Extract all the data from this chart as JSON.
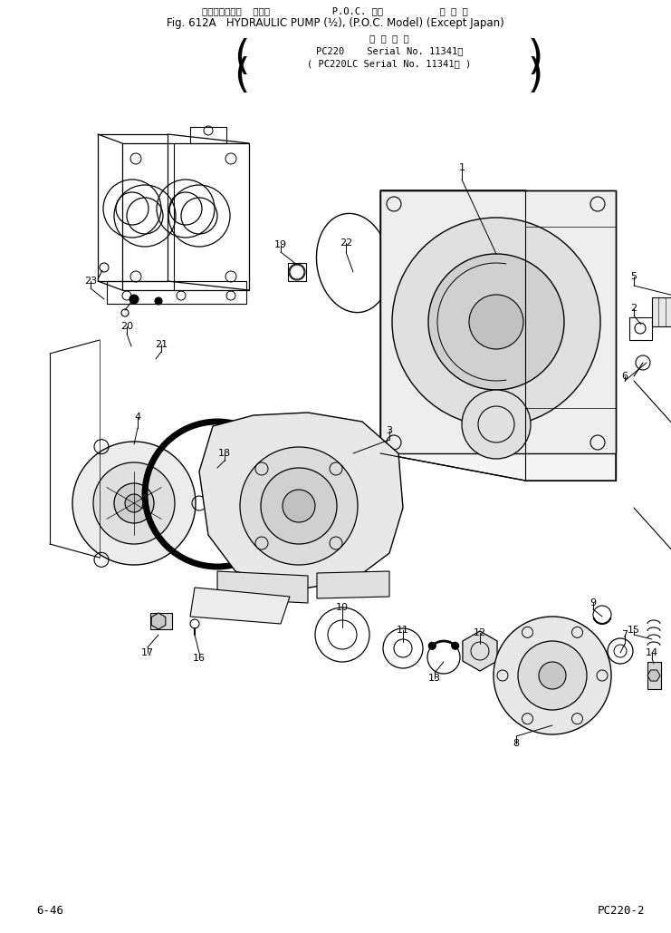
{
  "title_line1": "ハイドロリック  ポンプ           P.O.C. 仕機          海 外 向",
  "title_line2": "Fig. 612A   HYDRAULIC PUMP (½), (P.O.C. Model) (Except Japan)",
  "title_line3": "適 用 号 機",
  "title_line4": "PC220    Serial No. 11341～",
  "title_line5": "( PC220LC Serial No. 11341～ )",
  "footer_left": "6-46",
  "footer_right": "PC220-2",
  "bg_color": "#ffffff"
}
